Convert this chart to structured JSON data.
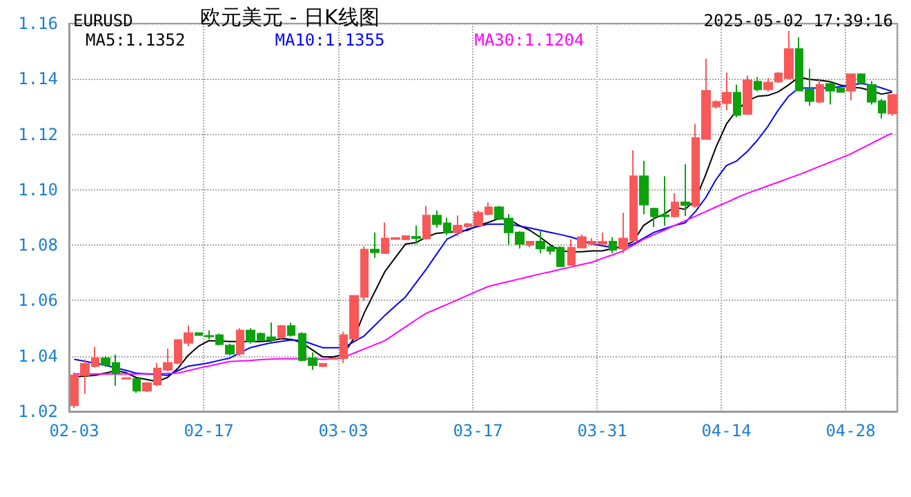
{
  "chart_data": {
    "type": "candlestick",
    "title": "欧元美元 - 日K线图",
    "subtitle": "EURUSD",
    "annotations": [
      "2025-05-02 17:39:16"
    ],
    "categories": [
      "02-03",
      null,
      null,
      null,
      null,
      null,
      null,
      null,
      null,
      null,
      null,
      null,
      null,
      "02-17",
      null,
      null,
      null,
      null,
      null,
      null,
      null,
      null,
      null,
      null,
      null,
      null,
      "03-03",
      null,
      null,
      null,
      null,
      null,
      null,
      null,
      null,
      null,
      null,
      null,
      null,
      "03-17",
      null,
      null,
      null,
      null,
      null,
      null,
      null,
      null,
      null,
      null,
      null,
      "03-31",
      null,
      null,
      null,
      null,
      null,
      null,
      null,
      null,
      null,
      null,
      null,
      "04-14",
      null,
      null,
      null,
      null,
      null,
      null,
      null,
      null,
      null,
      null,
      null,
      "04-28",
      null,
      null,
      null,
      null
    ],
    "ohlc": [
      [
        1.0222,
        1.034,
        1.0212,
        1.033
      ],
      [
        1.033,
        1.0388,
        1.0263,
        1.0372
      ],
      [
        1.0363,
        1.0433,
        1.0358,
        1.0392
      ],
      [
        1.0392,
        1.04,
        1.036,
        1.0368
      ],
      [
        1.0375,
        1.0405,
        1.0292,
        1.0338
      ],
      [
        1.0318,
        1.0322,
        1.0316,
        1.032
      ],
      [
        1.0318,
        1.032,
        1.0267,
        1.0275
      ],
      [
        1.0275,
        1.0305,
        1.027,
        1.0302
      ],
      [
        1.0297,
        1.0375,
        1.029,
        1.0355
      ],
      [
        1.035,
        1.0427,
        1.0345,
        1.0375
      ],
      [
        1.0375,
        1.046,
        1.037,
        1.0458
      ],
      [
        1.0447,
        1.051,
        1.0435,
        1.0483
      ],
      [
        1.0483,
        1.0485,
        1.0473,
        1.0475
      ],
      [
        1.0473,
        1.0493,
        1.046,
        1.047
      ],
      [
        1.0475,
        1.048,
        1.0438,
        1.0442
      ],
      [
        1.0438,
        1.0445,
        1.0402,
        1.0408
      ],
      [
        1.0408,
        1.05,
        1.04,
        1.0492
      ],
      [
        1.0492,
        1.05,
        1.0445,
        1.0452
      ],
      [
        1.048,
        1.0485,
        1.0455,
        1.0458
      ],
      [
        1.0468,
        1.0521,
        1.045,
        1.0458
      ],
      [
        1.0468,
        1.0512,
        1.0462,
        1.0508
      ],
      [
        1.0508,
        1.052,
        1.047,
        1.0475
      ],
      [
        1.048,
        1.0485,
        1.038,
        1.0385
      ],
      [
        1.0392,
        1.0413,
        1.035,
        1.0367
      ],
      [
        1.0363,
        1.0375,
        1.036,
        1.0372
      ],
      [
        1.039,
        1.0395,
        1.0388,
        1.0392
      ],
      [
        1.0392,
        1.0488,
        1.0375,
        1.0475
      ],
      [
        1.0462,
        1.062,
        1.0455,
        1.0617
      ],
      [
        1.0613,
        1.0795,
        1.06,
        1.0784
      ],
      [
        1.0784,
        1.0846,
        1.0754,
        1.0774
      ],
      [
        1.0771,
        1.0882,
        1.0768,
        1.0824
      ],
      [
        1.0822,
        1.0828,
        1.082,
        1.0826
      ],
      [
        1.0821,
        1.0835,
        1.0818,
        1.0833
      ],
      [
        1.083,
        1.0871,
        1.0804,
        1.0825
      ],
      [
        1.0824,
        1.0942,
        1.082,
        1.0907
      ],
      [
        1.0907,
        1.0925,
        1.0863,
        1.0876
      ],
      [
        1.0879,
        1.0899,
        1.0838,
        1.0846
      ],
      [
        1.0846,
        1.0907,
        1.0833,
        1.0871
      ],
      [
        1.0868,
        1.088,
        1.0862,
        1.0876
      ],
      [
        1.0871,
        1.0925,
        1.0868,
        1.0917
      ],
      [
        1.0912,
        1.0954,
        1.0908,
        1.0937
      ],
      [
        1.0937,
        1.0942,
        1.089,
        1.0896
      ],
      [
        1.0896,
        1.0912,
        1.0801,
        1.0846
      ],
      [
        1.0846,
        1.085,
        1.0788,
        1.0804
      ],
      [
        1.0801,
        1.0815,
        1.0792,
        1.0813
      ],
      [
        1.0813,
        1.085,
        1.0771,
        1.0788
      ],
      [
        1.0793,
        1.08,
        1.0766,
        1.0779
      ],
      [
        1.0791,
        1.0796,
        1.0722,
        1.0724
      ],
      [
        1.0729,
        1.0821,
        1.0726,
        1.0791
      ],
      [
        1.0791,
        1.0838,
        1.0788,
        1.0829
      ],
      [
        1.0804,
        1.0825,
        1.08,
        1.0813
      ],
      [
        1.0805,
        1.0846,
        1.08,
        1.0812
      ],
      [
        1.0813,
        1.0829,
        1.0771,
        1.0783
      ],
      [
        1.0788,
        1.0917,
        1.0771,
        1.0824
      ],
      [
        1.0818,
        1.1142,
        1.0812,
        1.1049
      ],
      [
        1.1049,
        1.1104,
        1.0912,
        1.0946
      ],
      [
        1.0932,
        1.0935,
        1.0866,
        1.0904
      ],
      [
        1.0908,
        1.1049,
        1.0871,
        1.0904
      ],
      [
        1.0904,
        1.0987,
        1.09,
        1.0954
      ],
      [
        1.0955,
        1.1092,
        1.0905,
        1.0945
      ],
      [
        1.0942,
        1.1237,
        1.0935,
        1.1187
      ],
      [
        1.1183,
        1.1473,
        1.118,
        1.1357
      ],
      [
        1.13,
        1.1323,
        1.1293,
        1.1317
      ],
      [
        1.1312,
        1.1423,
        1.1287,
        1.135
      ],
      [
        1.135,
        1.1379,
        1.1262,
        1.127
      ],
      [
        1.1273,
        1.1412,
        1.127,
        1.1395
      ],
      [
        1.139,
        1.1407,
        1.1355,
        1.1362
      ],
      [
        1.1362,
        1.1403,
        1.1355,
        1.1387
      ],
      [
        1.139,
        1.1425,
        1.1385,
        1.142
      ],
      [
        1.1403,
        1.1573,
        1.1398,
        1.1508
      ],
      [
        1.1508,
        1.155,
        1.1355,
        1.1358
      ],
      [
        1.1362,
        1.1437,
        1.1303,
        1.132
      ],
      [
        1.1317,
        1.14,
        1.1312,
        1.1378
      ],
      [
        1.1382,
        1.139,
        1.1308,
        1.1357
      ],
      [
        1.1367,
        1.137,
        1.135,
        1.1353
      ],
      [
        1.1357,
        1.142,
        1.1323,
        1.1417
      ],
      [
        1.1417,
        1.142,
        1.138,
        1.1387
      ],
      [
        1.1378,
        1.1392,
        1.1307,
        1.1317
      ],
      [
        1.132,
        1.1328,
        1.1257,
        1.1278
      ],
      [
        1.1275,
        1.1345,
        1.1267,
        1.1342
      ]
    ],
    "colors": [
      "#f85858",
      "#f85858",
      "#f85858",
      "#0da10d",
      "#0da10d",
      "#f85858",
      "#0da10d",
      "#f85858",
      "#f85858",
      "#f85858",
      "#f85858",
      "#f85858",
      "#0da10d",
      "#0da10d",
      "#0da10d",
      "#0da10d",
      "#f85858",
      "#0da10d",
      "#0da10d",
      "#0da10d",
      "#f85858",
      "#0da10d",
      "#0da10d",
      "#0da10d",
      "#f85858",
      "#f85858",
      "#f85858",
      "#f85858",
      "#f85858",
      "#0da10d",
      "#f85858",
      "#f85858",
      "#f85858",
      "#0da10d",
      "#f85858",
      "#0da10d",
      "#0da10d",
      "#f85858",
      "#f85858",
      "#f85858",
      "#f85858",
      "#0da10d",
      "#0da10d",
      "#0da10d",
      "#f85858",
      "#0da10d",
      "#0da10d",
      "#0da10d",
      "#f85858",
      "#f85858",
      "#f85858",
      "#f85858",
      "#0da10d",
      "#f85858",
      "#f85858",
      "#0da10d",
      "#0da10d",
      "#0da10d",
      "#f85858",
      "#0da10d",
      "#f85858",
      "#f85858",
      "#f85858",
      "#f85858",
      "#0da10d",
      "#f85858",
      "#0da10d",
      "#f85858",
      "#f85858",
      "#f85858",
      "#0da10d",
      "#0da10d",
      "#f85858",
      "#0da10d",
      "#0da10d",
      "#f85858",
      "#0da10d",
      "#0da10d",
      "#0da10d",
      "#f85858"
    ],
    "series": [
      {
        "type": "line",
        "name": "MA5:1.1352",
        "color": "#000000",
        "values": [
          1.0325,
          1.0327,
          1.033,
          1.0338,
          1.0347,
          1.034,
          1.0322,
          1.0315,
          1.0308,
          1.0322,
          1.0355,
          1.0402,
          1.0435,
          1.0455,
          1.0455,
          1.0452,
          1.0452,
          1.0452,
          1.0452,
          1.0455,
          1.0463,
          1.046,
          1.0447,
          1.0422,
          1.0397,
          1.0397,
          1.0405,
          1.0463,
          1.0554,
          1.0629,
          1.0704,
          1.0754,
          1.0804,
          1.0809,
          1.0829,
          1.0843,
          1.0846,
          1.0849,
          1.0854,
          1.0871,
          1.0882,
          1.0896,
          1.0893,
          1.0871,
          1.0854,
          1.0829,
          1.0801,
          1.0779,
          1.0776,
          1.0776,
          1.0779,
          1.0779,
          1.0788,
          1.0796,
          1.0813,
          1.0871,
          1.0896,
          1.0912,
          1.0937,
          1.0929,
          1.0962,
          1.1054,
          1.1154,
          1.1237,
          1.1287,
          1.132,
          1.1337,
          1.134,
          1.1353,
          1.1378,
          1.1407,
          1.1398,
          1.1395,
          1.139,
          1.1378,
          1.137,
          1.1367,
          1.1357,
          1.1345,
          1.1352
        ]
      },
      {
        "type": "line",
        "name": "MA10:1.1355",
        "color": "#0000ff",
        "values": [
          1.0388,
          1.0381,
          1.0374,
          1.0367,
          1.0357,
          1.0348,
          1.0338,
          1.0335,
          1.0333,
          1.033,
          1.0347,
          1.0363,
          1.0369,
          1.0375,
          1.0384,
          1.0392,
          1.0411,
          1.043,
          1.0439,
          1.0447,
          1.0453,
          1.0458,
          1.0456,
          1.0443,
          1.043,
          1.043,
          1.043,
          1.0451,
          1.0472,
          1.0509,
          1.0546,
          1.058,
          1.0613,
          1.0663,
          1.0713,
          1.0767,
          1.0821,
          1.084,
          1.0858,
          1.0867,
          1.0876,
          1.0876,
          1.0876,
          1.0869,
          1.0862,
          1.0854,
          1.0846,
          1.0838,
          1.0829,
          1.0817,
          1.0804,
          1.0798,
          1.0791,
          1.0791,
          1.0804,
          1.0825,
          1.0846,
          1.0859,
          1.0871,
          1.088,
          1.0921,
          1.0971,
          1.1037,
          1.1087,
          1.1104,
          1.1137,
          1.1179,
          1.1228,
          1.1287,
          1.1337,
          1.1367,
          1.1367,
          1.1367,
          1.1367,
          1.1372,
          1.1378,
          1.1383,
          1.1378,
          1.1367,
          1.1355
        ]
      },
      {
        "type": "line",
        "name": "MA30:1.1204",
        "color": "#ff00ff",
        "values": [
          1.0335,
          1.0335,
          1.0335,
          1.0335,
          1.0335,
          1.0335,
          1.0335,
          1.0336,
          1.0336,
          1.0337,
          1.0338,
          1.0347,
          1.0356,
          1.0364,
          1.0372,
          1.038,
          1.0382,
          1.0384,
          1.0387,
          1.0389,
          1.039,
          1.039,
          1.039,
          1.0389,
          1.0388,
          1.039,
          1.0395,
          1.041,
          1.0425,
          1.044,
          1.0455,
          1.048,
          1.0505,
          1.053,
          1.0554,
          1.057,
          1.0586,
          1.0602,
          1.0619,
          1.0635,
          1.0651,
          1.066,
          1.0669,
          1.0678,
          1.0687,
          1.0696,
          1.0704,
          1.0713,
          1.0721,
          1.073,
          1.0738,
          1.0752,
          1.0765,
          1.0779,
          1.08,
          1.0821,
          1.0838,
          1.0854,
          1.0871,
          1.0888,
          1.0904,
          1.0921,
          1.0938,
          1.0954,
          1.0971,
          1.0987,
          1.1,
          1.1014,
          1.1027,
          1.1041,
          1.1054,
          1.1069,
          1.1084,
          1.1099,
          1.1114,
          1.1129,
          1.1148,
          1.1167,
          1.1186,
          1.1204
        ]
      }
    ],
    "ylim": [
      1.02,
      1.16
    ],
    "yticks": [
      1.02,
      1.04,
      1.06,
      1.08,
      {
        "value": 1.1,
        "label": "1.10"
      },
      1.12,
      1.14,
      1.16
    ],
    "grid": true,
    "legend": "top left",
    "marker": "none",
    "line_style": "solid"
  }
}
